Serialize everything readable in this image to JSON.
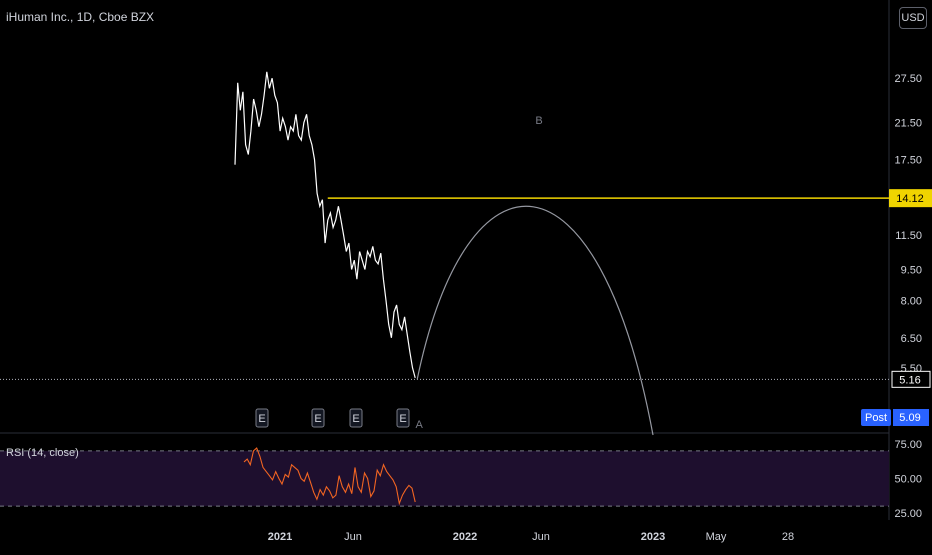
{
  "header": {
    "symbol_title": "iHuman Inc., 1D, Cboe BZX",
    "currency_button": "USD"
  },
  "colors": {
    "background": "#000000",
    "price_line": "#ffffff",
    "horizontal_level": "#f0d400",
    "arc": "#9598a1",
    "rsi_line": "#f26522",
    "rsi_band": "#1e0f2e",
    "post_badge": "#2962ff"
  },
  "chart_data": [
    {
      "type": "line",
      "series": [
        {
          "values": [
            [
              0.0,
              17.0
            ],
            [
              0.5,
              26.8
            ],
            [
              1.0,
              23.0
            ],
            [
              1.5,
              25.5
            ],
            [
              2.0,
              19.0
            ],
            [
              2.5,
              18.0
            ],
            [
              3.0,
              20.5
            ],
            [
              3.5,
              24.5
            ],
            [
              4.0,
              23.0
            ],
            [
              4.5,
              21.0
            ],
            [
              5.0,
              22.5
            ],
            [
              5.5,
              25.0
            ],
            [
              6.0,
              28.5
            ],
            [
              6.5,
              26.0
            ],
            [
              7.0,
              27.5
            ],
            [
              7.5,
              25.0
            ],
            [
              8.0,
              24.0
            ],
            [
              8.5,
              20.5
            ],
            [
              9.0,
              22.0
            ],
            [
              9.5,
              21.0
            ],
            [
              10.0,
              19.5
            ],
            [
              10.5,
              21.0
            ],
            [
              11.0,
              20.5
            ],
            [
              11.5,
              22.5
            ],
            [
              12.0,
              20.0
            ],
            [
              12.5,
              19.5
            ],
            [
              13.0,
              21.5
            ],
            [
              13.5,
              22.5
            ],
            [
              14.0,
              20.0
            ],
            [
              14.5,
              19.0
            ],
            [
              15.0,
              17.5
            ],
            [
              15.5,
              14.5
            ],
            [
              16.0,
              13.5
            ],
            [
              16.5,
              14.0
            ],
            [
              17.0,
              11.0
            ],
            [
              17.5,
              12.5
            ],
            [
              18.0,
              13.0
            ],
            [
              18.5,
              12.0
            ],
            [
              19.0,
              12.5
            ],
            [
              19.5,
              13.5
            ],
            [
              20.0,
              12.5
            ],
            [
              20.5,
              11.5
            ],
            [
              21.0,
              10.5
            ],
            [
              21.5,
              11.0
            ],
            [
              22.0,
              9.5
            ],
            [
              22.5,
              10.0
            ],
            [
              23.0,
              9.0
            ],
            [
              23.5,
              10.5
            ],
            [
              24.0,
              10.0
            ],
            [
              24.5,
              9.5
            ],
            [
              25.0,
              10.5
            ],
            [
              25.5,
              10.2
            ],
            [
              26.0,
              10.8
            ],
            [
              26.5,
              10.0
            ],
            [
              27.0,
              9.8
            ],
            [
              27.5,
              10.4
            ],
            [
              28.0,
              9.0
            ],
            [
              28.5,
              8.0
            ],
            [
              29.0,
              7.0
            ],
            [
              29.5,
              6.5
            ],
            [
              30.0,
              7.5
            ],
            [
              30.5,
              7.8
            ],
            [
              31.0,
              7.0
            ],
            [
              31.5,
              6.8
            ],
            [
              32.0,
              7.3
            ],
            [
              32.5,
              6.6
            ],
            [
              33.0,
              6.0
            ],
            [
              33.5,
              5.5
            ],
            [
              34.0,
              5.2
            ]
          ]
        }
      ],
      "horizontal_line": 14.12,
      "arc_peak_label": "B",
      "arc_start_label": "A",
      "earnings_markers": [
        "E",
        "E",
        "E",
        "E"
      ],
      "y_ticks": [
        "27.50",
        "21.50",
        "17.50",
        "14.12",
        "11.50",
        "9.50",
        "8.00",
        "6.50",
        "5.50"
      ],
      "price_labels": {
        "level": "14.12",
        "last": "5.16",
        "post_label": "Post",
        "post_value": "5.09"
      },
      "x_ticks": [
        "2021",
        "Jun",
        "2022",
        "Jun",
        "2023",
        "May",
        "28"
      ],
      "log_scale": true
    },
    {
      "type": "line",
      "title": "RSI (14, close)",
      "series": [
        {
          "values": [
            62,
            64,
            60,
            70,
            72,
            66,
            58,
            55,
            52,
            49,
            55,
            50,
            46,
            53,
            51,
            60,
            58,
            56,
            50,
            48,
            54,
            47,
            40,
            35,
            42,
            38,
            44,
            41,
            36,
            38,
            52,
            44,
            40,
            46,
            39,
            58,
            44,
            40,
            54,
            50,
            37,
            41,
            56,
            52,
            60,
            55,
            52,
            49,
            44,
            32,
            38,
            42,
            45,
            43,
            33
          ]
        }
      ],
      "y_ticks": [
        "75.00",
        "50.00",
        "25.00"
      ],
      "overbought": 70,
      "oversold": 30
    }
  ]
}
